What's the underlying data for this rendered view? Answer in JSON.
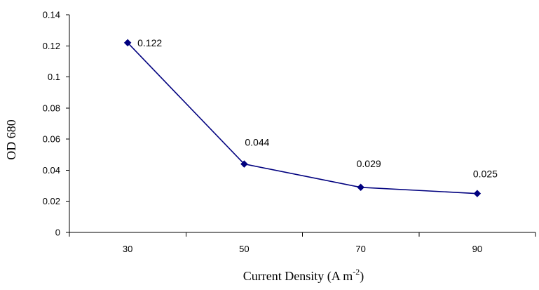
{
  "chart_data": {
    "type": "line",
    "title": "",
    "xlabel": "Current Density (A m-2)",
    "xlabel_parts": {
      "base": "Current Density (A m",
      "sup": "-2",
      "close": ")"
    },
    "ylabel": "OD 680",
    "categories": [
      "30",
      "50",
      "70",
      "90"
    ],
    "series": [
      {
        "values": [
          0.122,
          0.044,
          0.029,
          0.025
        ]
      }
    ],
    "data_labels": [
      "0.122",
      "0.044",
      "0.029",
      "0.025"
    ],
    "ylim": [
      0,
      0.14
    ],
    "yticks": [
      {
        "value": 0,
        "label": "0"
      },
      {
        "value": 0.02,
        "label": "0.02"
      },
      {
        "value": 0.04,
        "label": "0.04"
      },
      {
        "value": 0.06,
        "label": "0.06"
      },
      {
        "value": 0.08,
        "label": "0.08"
      },
      {
        "value": 0.1,
        "label": "0.1"
      },
      {
        "value": 0.12,
        "label": "0.12"
      },
      {
        "value": 0.14,
        "label": "0.14"
      }
    ],
    "grid": false,
    "legend": "none",
    "colors": {
      "series": "#00007f",
      "axis": "#000000"
    }
  }
}
